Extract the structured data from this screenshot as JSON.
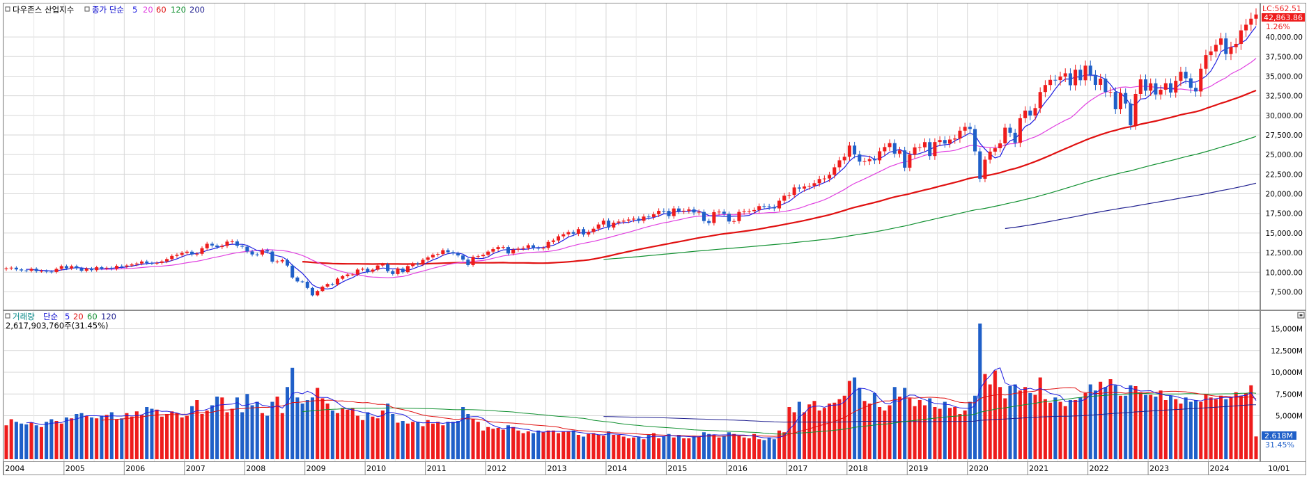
{
  "header": {
    "price_title": "다우존스 산업지수",
    "price_ma_label": "종가 단순",
    "price_ma_periods": [
      "5",
      "20",
      "60",
      "120",
      "200"
    ],
    "volume_title": "거래량",
    "volume_ma_label": "단순",
    "volume_ma_periods": [
      "5",
      "20",
      "60",
      "120"
    ],
    "volume_readout": "2,617,903,760주(31.45%)"
  },
  "badges": {
    "lc_label": "LC:562.51",
    "last_price": "42,863.86",
    "change_pct": "1.26%",
    "volume_last": "2.618M",
    "volume_pct": "31.45%"
  },
  "colors": {
    "up": "#ee1c1c",
    "down": "#1f5fc8",
    "ma5": "#1f1fe0",
    "ma20": "#e040e0",
    "ma60": "#e01010",
    "ma120": "#109030",
    "ma200": "#202090",
    "grid": "#d6d6d6"
  },
  "chart_data": [
    {
      "type": "candlestick",
      "title": "다우존스 산업지수",
      "period": "monthly",
      "ylim": [
        5500,
        44000
      ],
      "y_ticks": [
        "7,500.00",
        "10,000.00",
        "12,500.00",
        "15,000.00",
        "17,500.00",
        "20,000.00",
        "22,500.00",
        "25,000.00",
        "27,500.00",
        "30,000.00",
        "32,500.00",
        "35,000.00",
        "37,500.00",
        "40,000.00"
      ],
      "x_ticks": [
        "2004",
        "2005",
        "2006",
        "2007",
        "2008",
        "2009",
        "2010",
        "2011",
        "2012",
        "2013",
        "2014",
        "2015",
        "2016",
        "2017",
        "2018",
        "2019",
        "2020",
        "2021",
        "2022",
        "2023",
        "2024"
      ],
      "moving_averages": [
        "5",
        "20",
        "60",
        "120",
        "200"
      ],
      "closes": [
        {
          "year": 2004,
          "m": [
            10490,
            10580,
            10360,
            10230,
            10190,
            10440,
            10140,
            10170,
            10080,
            10030,
            10430,
            10780
          ]
        },
        {
          "year": 2005,
          "m": [
            10490,
            10770,
            10500,
            10190,
            10470,
            10270,
            10640,
            10480,
            10570,
            10440,
            10810,
            10720
          ]
        },
        {
          "year": 2006,
          "m": [
            10860,
            10990,
            11110,
            11370,
            11170,
            11150,
            11190,
            11380,
            11680,
            12080,
            12220,
            12460
          ]
        },
        {
          "year": 2007,
          "m": [
            12620,
            12270,
            12350,
            13060,
            13630,
            13410,
            13210,
            13360,
            13900,
            13930,
            13370,
            13260
          ]
        },
        {
          "year": 2008,
          "m": [
            12650,
            12270,
            12260,
            12820,
            12640,
            11350,
            11380,
            11540,
            10850,
            9330,
            8830,
            8780
          ]
        },
        {
          "year": 2009,
          "m": [
            8000,
            7060,
            7610,
            8170,
            8500,
            8450,
            9170,
            9500,
            9710,
            9710,
            10340,
            10430
          ]
        },
        {
          "year": 2010,
          "m": [
            10070,
            10330,
            10860,
            11010,
            10140,
            9770,
            10470,
            10010,
            10790,
            11120,
            11010,
            11580
          ]
        },
        {
          "year": 2011,
          "m": [
            11890,
            12230,
            12320,
            12810,
            12570,
            12410,
            12140,
            11610,
            10910,
            11960,
            12050,
            12220
          ]
        },
        {
          "year": 2012,
          "m": [
            12630,
            12950,
            13210,
            13210,
            12390,
            12880,
            13010,
            13090,
            13440,
            13100,
            13030,
            13100
          ]
        },
        {
          "year": 2013,
          "m": [
            13860,
            14050,
            14580,
            14840,
            15120,
            14910,
            15500,
            14810,
            15130,
            15550,
            16090,
            16580
          ]
        },
        {
          "year": 2014,
          "m": [
            15700,
            16320,
            16460,
            16580,
            16720,
            16830,
            16560,
            17100,
            17040,
            17390,
            17830,
            17820
          ]
        },
        {
          "year": 2015,
          "m": [
            17160,
            18130,
            17780,
            17840,
            18010,
            17620,
            17690,
            16530,
            16280,
            17660,
            17720,
            17430
          ]
        },
        {
          "year": 2016,
          "m": [
            16470,
            16520,
            17690,
            17770,
            17790,
            17930,
            18430,
            18400,
            18310,
            18140,
            19120,
            19760
          ]
        },
        {
          "year": 2017,
          "m": [
            19860,
            20810,
            20660,
            20940,
            21010,
            21350,
            21890,
            21950,
            22410,
            23380,
            24270,
            24720
          ]
        },
        {
          "year": 2018,
          "m": [
            26150,
            25030,
            24100,
            24160,
            24420,
            24270,
            25420,
            25960,
            26460,
            25120,
            25540,
            23330
          ]
        },
        {
          "year": 2019,
          "m": [
            25000,
            25920,
            25930,
            26590,
            24820,
            26600,
            26860,
            26400,
            26920,
            27050,
            28050,
            28540
          ]
        },
        {
          "year": 2020,
          "m": [
            28260,
            25410,
            21920,
            24350,
            25380,
            25810,
            26430,
            28430,
            27780,
            26500,
            29640,
            30610
          ]
        },
        {
          "year": 2021,
          "m": [
            29980,
            30930,
            32980,
            33870,
            34530,
            34500,
            34940,
            35360,
            33840,
            35820,
            34480,
            36340
          ]
        },
        {
          "year": 2022,
          "m": [
            35130,
            33890,
            34680,
            32980,
            32990,
            30780,
            32850,
            31510,
            28730,
            32730,
            34590,
            33150
          ]
        },
        {
          "year": 2023,
          "m": [
            34090,
            32660,
            33270,
            34100,
            32910,
            34410,
            35560,
            34720,
            33510,
            33050,
            35950,
            37690
          ]
        },
        {
          "year": 2024,
          "m": [
            38150,
            38990,
            39810,
            37820,
            38690,
            39120,
            40840,
            41560,
            42330,
            42860
          ]
        }
      ]
    },
    {
      "type": "bar",
      "title": "거래량",
      "ylim": [
        0,
        16800
      ],
      "y_unit": "M",
      "y_ticks": [
        "5,000M",
        "7,500M",
        "10,000M",
        "12,500M",
        "15,000M"
      ],
      "x_axis_end_label": "10/01",
      "moving_averages": [
        "5",
        "20",
        "60",
        "120"
      ],
      "volumes": [
        {
          "year": 2004,
          "m": [
            3900,
            4600,
            4300,
            4100,
            4000,
            4200,
            3900,
            3700,
            4300,
            4600,
            4400,
            4100
          ]
        },
        {
          "year": 2005,
          "m": [
            4800,
            4700,
            5200,
            5300,
            5000,
            4800,
            4700,
            5000,
            5100,
            5400,
            4600,
            4700
          ]
        },
        {
          "year": 2006,
          "m": [
            5300,
            4900,
            5500,
            5100,
            6000,
            5800,
            5700,
            4900,
            5200,
            5500,
            5300,
            4800
          ]
        },
        {
          "year": 2007,
          "m": [
            5000,
            6100,
            6800,
            5200,
            5600,
            6200,
            7200,
            7100,
            5400,
            5800,
            7100,
            5400
          ]
        },
        {
          "year": 2008,
          "m": [
            7500,
            6200,
            6600,
            5300,
            5000,
            6600,
            7200,
            5300,
            8300,
            10500,
            7100,
            6400
          ]
        },
        {
          "year": 2009,
          "m": [
            6800,
            7100,
            8200,
            7000,
            6400,
            5600,
            5300,
            5900,
            5700,
            5900,
            5000,
            4500
          ]
        },
        {
          "year": 2010,
          "m": [
            5400,
            4900,
            4700,
            5600,
            6400,
            5200,
            4200,
            4400,
            4100,
            4300,
            4300,
            3800
          ]
        },
        {
          "year": 2011,
          "m": [
            4500,
            4100,
            4300,
            3900,
            4300,
            4300,
            4400,
            6000,
            5200,
            4600,
            4300,
            3300
          ]
        },
        {
          "year": 2012,
          "m": [
            3700,
            3500,
            3600,
            3400,
            3900,
            3700,
            3300,
            3000,
            3200,
            3000,
            3300,
            3100
          ]
        },
        {
          "year": 2013,
          "m": [
            3300,
            3300,
            3000,
            3200,
            3200,
            3300,
            2800,
            2600,
            2900,
            3000,
            2800,
            2700
          ]
        },
        {
          "year": 2014,
          "m": [
            3200,
            2800,
            2800,
            2600,
            2400,
            2500,
            2600,
            2300,
            2800,
            3000,
            2400,
            2600
          ]
        },
        {
          "year": 2015,
          "m": [
            2900,
            2500,
            2800,
            2400,
            2400,
            2700,
            2600,
            3100,
            2900,
            2800,
            2500,
            2700
          ]
        },
        {
          "year": 2016,
          "m": [
            3100,
            2900,
            2700,
            2500,
            2400,
            2900,
            2300,
            2200,
            2500,
            2300,
            3300,
            3100
          ]
        },
        {
          "year": 2017,
          "m": [
            6000,
            5400,
            6600,
            5400,
            6300,
            6700,
            5600,
            5900,
            6400,
            6500,
            6900,
            7300
          ]
        },
        {
          "year": 2018,
          "m": [
            9000,
            9400,
            8200,
            6700,
            6400,
            7600,
            6000,
            5600,
            6200,
            8300,
            7200,
            8200
          ]
        },
        {
          "year": 2019,
          "m": [
            7000,
            6100,
            6800,
            6200,
            7000,
            6000,
            5800,
            6600,
            5900,
            6000,
            5200,
            5600
          ]
        },
        {
          "year": 2020,
          "m": [
            6600,
            7300,
            15600,
            9800,
            8600,
            10200,
            8300,
            7000,
            8400,
            8600,
            7900,
            8300
          ]
        },
        {
          "year": 2021,
          "m": [
            7600,
            7400,
            9400,
            6900,
            6500,
            7100,
            6600,
            6100,
            6800,
            6800,
            7100,
            7600
          ]
        },
        {
          "year": 2022,
          "m": [
            8600,
            7900,
            8900,
            8300,
            9200,
            8500,
            7300,
            7300,
            8500,
            8400,
            7700,
            7400
          ]
        },
        {
          "year": 2023,
          "m": [
            7400,
            7200,
            7900,
            6800,
            7300,
            6900,
            6400,
            7100,
            6600,
            6800,
            6600,
            7400
          ]
        },
        {
          "year": 2024,
          "m": [
            7100,
            6900,
            7300,
            6900,
            7200,
            7700,
            7300,
            7600,
            8500,
            2618
          ]
        }
      ]
    }
  ]
}
